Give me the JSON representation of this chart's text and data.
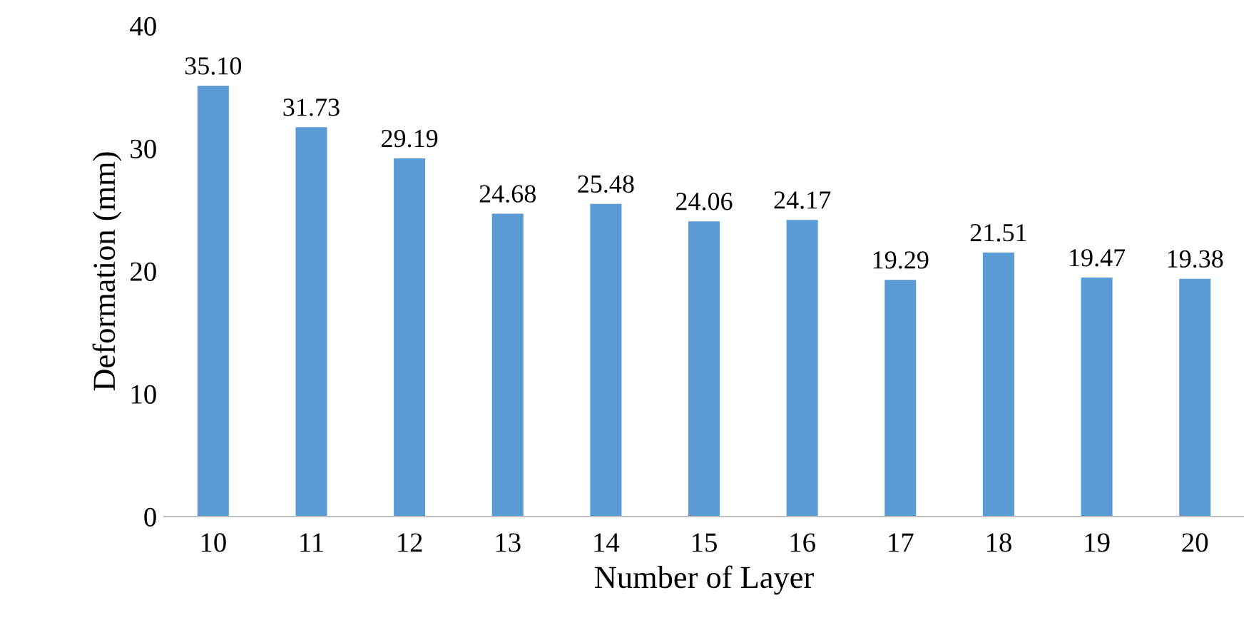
{
  "chart_data": {
    "type": "bar",
    "xlabel": "Number of Layer",
    "ylabel": "Deformation (mm)",
    "categories": [
      "10",
      "11",
      "12",
      "13",
      "14",
      "15",
      "16",
      "17",
      "18",
      "19",
      "20"
    ],
    "series": [
      {
        "color": "#5b9bd5",
        "values": [
          35.1,
          31.73,
          29.19,
          24.68,
          25.48,
          24.06,
          24.17,
          19.29,
          21.51,
          19.47,
          19.38
        ],
        "value_labels": [
          "35.10",
          "31.73",
          "29.19",
          "24.68",
          "25.48",
          "24.06",
          "24.17",
          "19.29",
          "21.51",
          "19.47",
          "19.38"
        ]
      }
    ],
    "ylim": [
      0,
      40
    ],
    "yticks": [
      0,
      10,
      20,
      30,
      40
    ]
  }
}
